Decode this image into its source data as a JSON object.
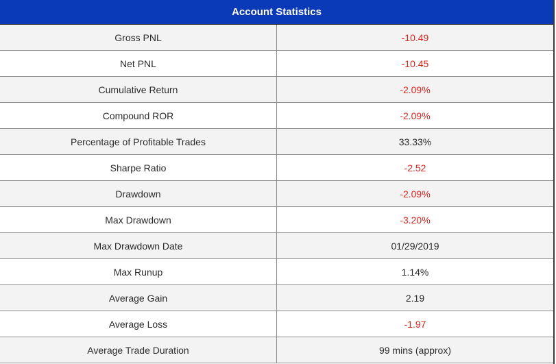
{
  "title": "Account Statistics",
  "colors": {
    "header_bg": "#0a3ab7",
    "negative": "#e2231a",
    "neutral": "#2b2b2b"
  },
  "rows": [
    {
      "label": "Gross PNL",
      "value": "-10.49",
      "negative": true
    },
    {
      "label": "Net PNL",
      "value": "-10.45",
      "negative": true
    },
    {
      "label": "Cumulative Return",
      "value": "-2.09%",
      "negative": true
    },
    {
      "label": "Compound ROR",
      "value": "-2.09%",
      "negative": true
    },
    {
      "label": "Percentage of Profitable Trades",
      "value": "33.33%",
      "negative": false
    },
    {
      "label": "Sharpe Ratio",
      "value": "-2.52",
      "negative": true
    },
    {
      "label": "Drawdown",
      "value": "-2.09%",
      "negative": true
    },
    {
      "label": "Max Drawdown",
      "value": "-3.20%",
      "negative": true
    },
    {
      "label": "Max Drawdown Date",
      "value": "01/29/2019",
      "negative": false
    },
    {
      "label": "Max Runup",
      "value": "1.14%",
      "negative": false
    },
    {
      "label": "Average Gain",
      "value": "2.19",
      "negative": false
    },
    {
      "label": "Average Loss",
      "value": "-1.97",
      "negative": true
    },
    {
      "label": "Average Trade Duration",
      "value": "99 mins (approx)",
      "negative": false
    }
  ]
}
